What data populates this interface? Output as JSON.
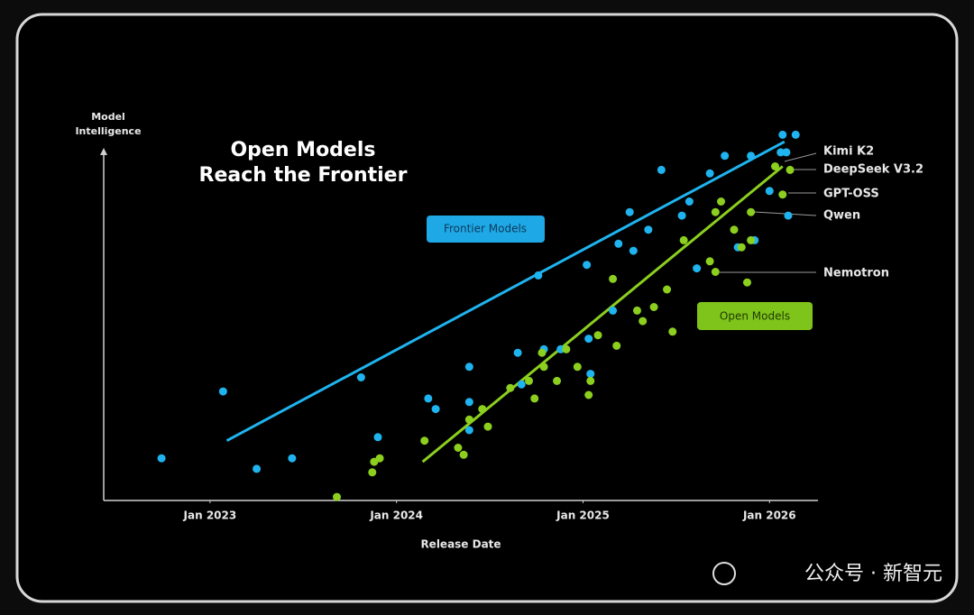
{
  "chart_data": {
    "type": "scatter",
    "title": [
      "Open Models",
      "Reach the Frontier"
    ],
    "xlabel": "Release Date",
    "ylabel": "Model Intelligence",
    "xlim": [
      2022.43,
      2026.25
    ],
    "ylim": [
      0,
      110
    ],
    "xticks": [
      {
        "value": 2023,
        "label": "Jan 2023"
      },
      {
        "value": 2024,
        "label": "Jan 2024"
      },
      {
        "value": 2025,
        "label": "Jan 2025"
      },
      {
        "value": 2026,
        "label": "Jan 2026"
      }
    ],
    "series": [
      {
        "name": "Frontier Models",
        "color": "#1fb4ef",
        "x": [
          2022.74,
          2023.07,
          2023.25,
          2023.44,
          2023.81,
          2023.9,
          2024.17,
          2024.21,
          2024.39,
          2024.39,
          2024.39,
          2024.65,
          2024.67,
          2024.76,
          2024.79,
          2024.88,
          2025.02,
          2025.03,
          2025.04,
          2025.16,
          2025.19,
          2025.25,
          2025.27,
          2025.35,
          2025.42,
          2025.53,
          2025.57,
          2025.61,
          2025.68,
          2025.76,
          2025.83,
          2025.9,
          2025.92,
          2026.0,
          2026.06,
          2026.07,
          2026.09,
          2026.1,
          2026.14
        ],
        "values": [
          12,
          31,
          9,
          12,
          35,
          18,
          29,
          26,
          38,
          28,
          20,
          42,
          33,
          64,
          43,
          43,
          67,
          46,
          36,
          54,
          73,
          82,
          71,
          77,
          94,
          81,
          85,
          66,
          93,
          98,
          72,
          98,
          74,
          88,
          99,
          104,
          99,
          81,
          104
        ],
        "trend": {
          "x": [
            2023.09,
            2026.08
          ],
          "values": [
            17,
            102
          ]
        }
      },
      {
        "name": "Open Models",
        "color": "#8ccf1f",
        "x": [
          2023.68,
          2023.87,
          2023.88,
          2023.91,
          2024.15,
          2024.33,
          2024.36,
          2024.39,
          2024.46,
          2024.49,
          2024.61,
          2024.71,
          2024.74,
          2024.78,
          2024.79,
          2024.86,
          2024.91,
          2024.97,
          2025.03,
          2025.04,
          2025.08,
          2025.16,
          2025.18,
          2025.29,
          2025.32,
          2025.38,
          2025.45,
          2025.48,
          2025.54,
          2025.68,
          2025.71,
          2025.71,
          2025.74,
          2025.81,
          2025.85,
          2025.88,
          2025.9,
          2025.9,
          2026.03,
          2026.11,
          2026.07
        ],
        "values": [
          1,
          8,
          11,
          12,
          17,
          15,
          13,
          23,
          26,
          21,
          32,
          34,
          29,
          42,
          38,
          34,
          43,
          38,
          30,
          34,
          47,
          63,
          44,
          54,
          51,
          55,
          60,
          48,
          74,
          68,
          82,
          65,
          85,
          77,
          72,
          62,
          82,
          74,
          95,
          94,
          87
        ],
        "trend": {
          "x": [
            2024.14,
            2026.07
          ],
          "values": [
            11,
            95
          ]
        }
      }
    ],
    "annotations": [
      "Kimi K2",
      "DeepSeek V3.2",
      "GPT-OSS",
      "Qwen",
      "Nemotron"
    ],
    "watermark": "公众号 · 新智元"
  }
}
